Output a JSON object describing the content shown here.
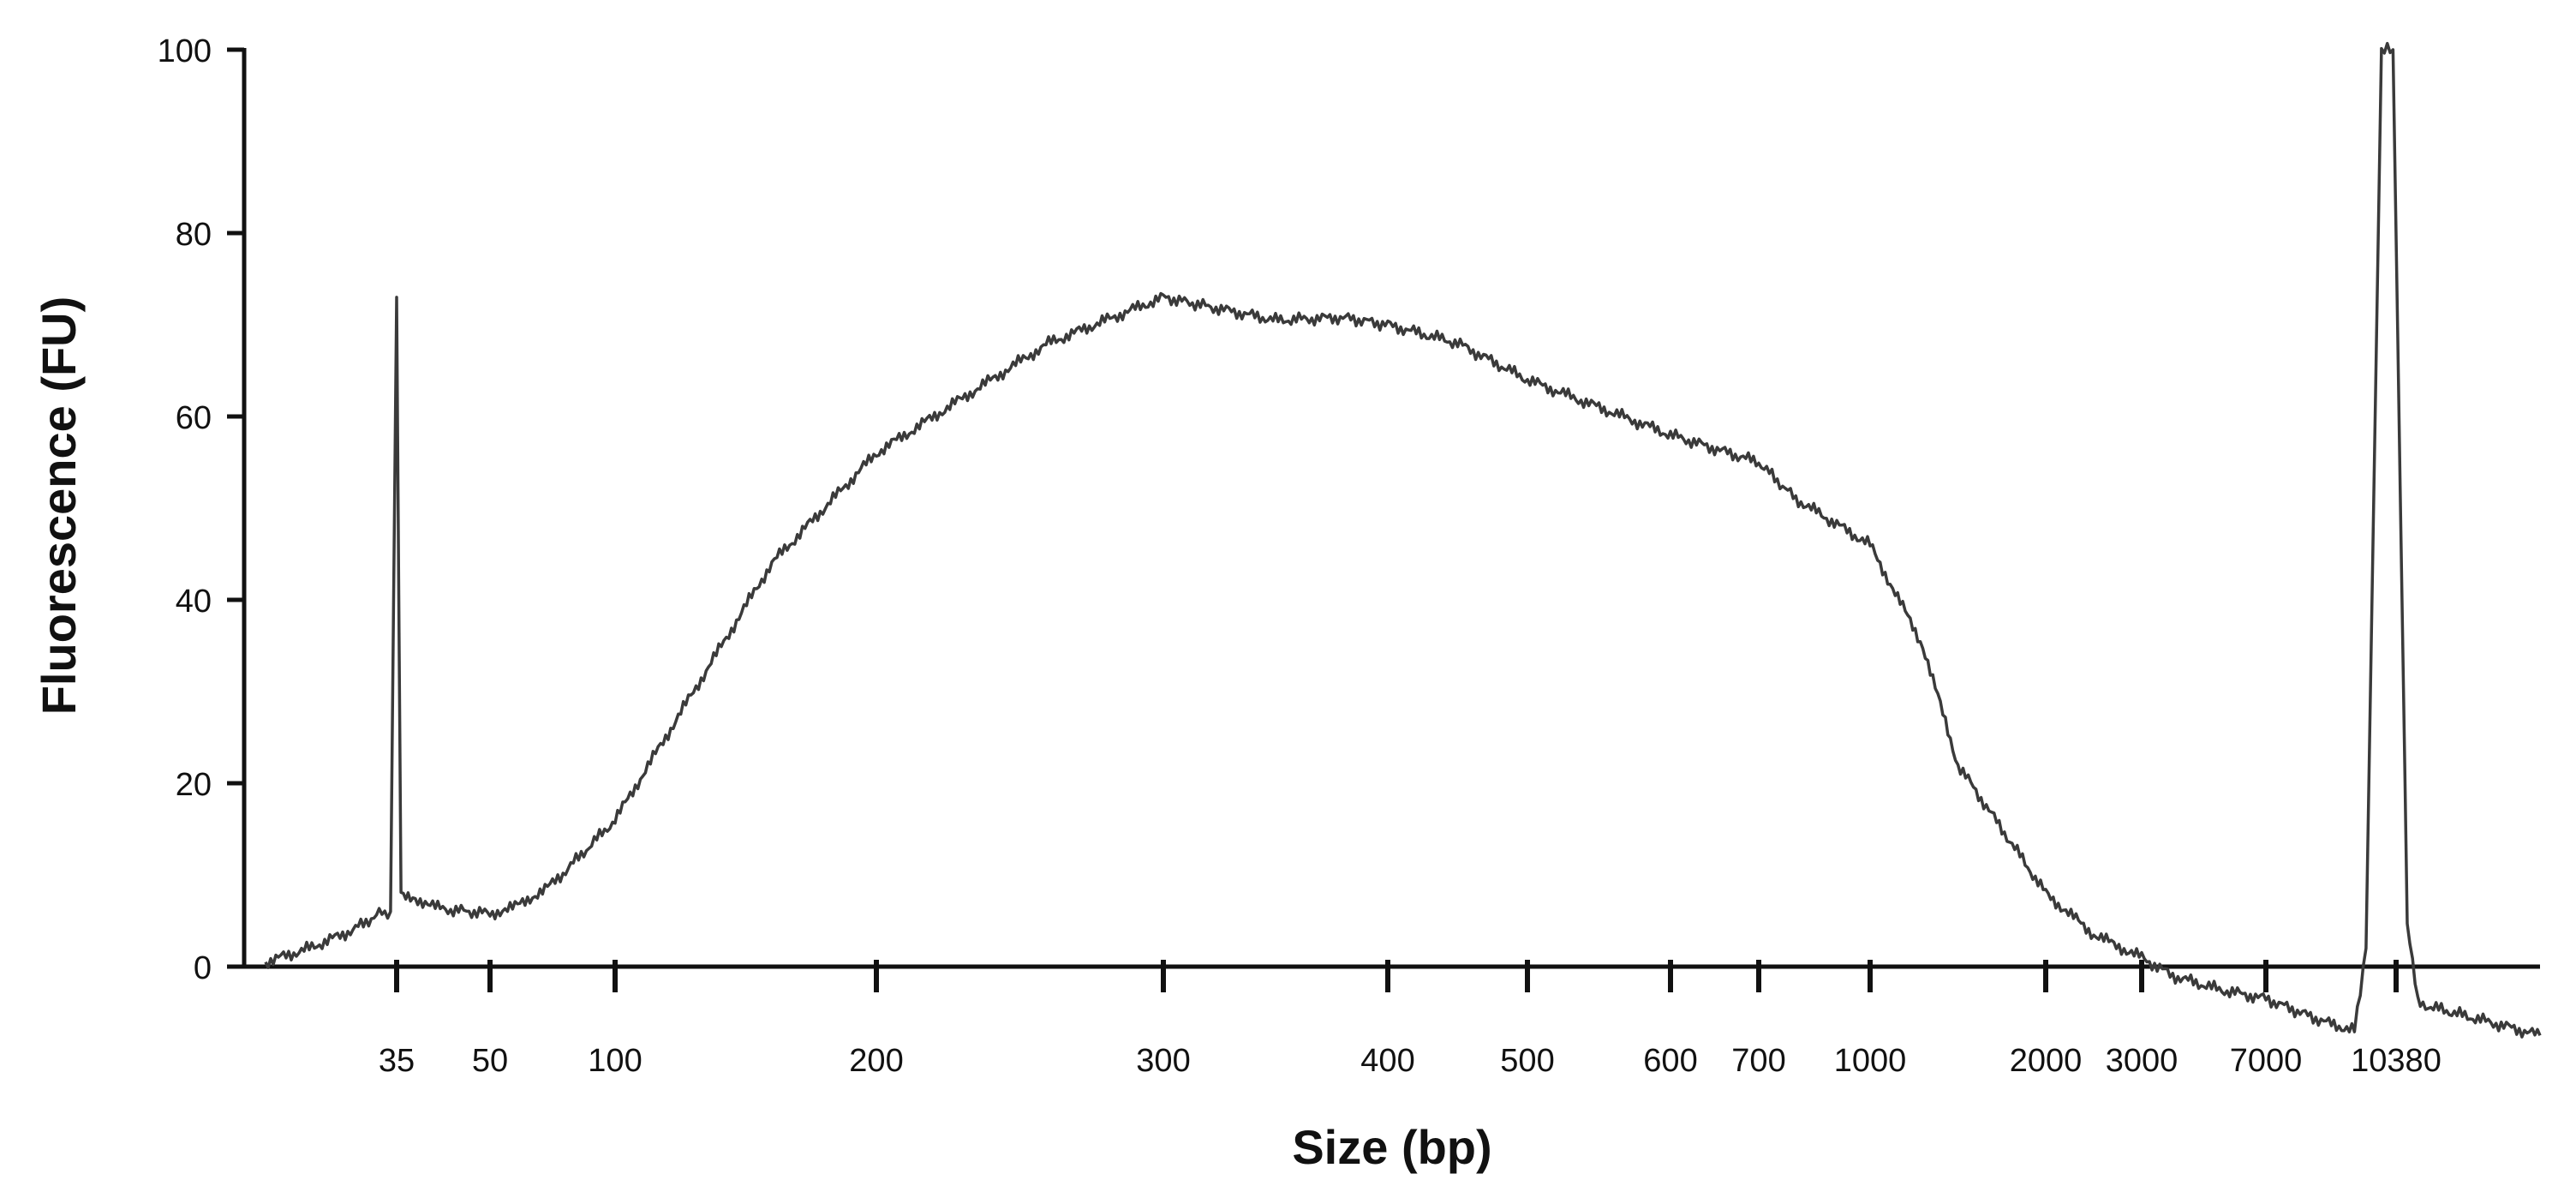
{
  "chart_data": {
    "type": "line",
    "title": "",
    "xlabel": "Size (bp)",
    "ylabel": "Fluorescence (FU)",
    "x_scale": "categorical-ladder (non-linear)",
    "x_ticks": [
      "35",
      "50",
      "100",
      "200",
      "300",
      "400",
      "500",
      "600",
      "700",
      "1000",
      "2000",
      "3000",
      "7000",
      "10380"
    ],
    "ylim": [
      0,
      100
    ],
    "y_ticks": [
      0,
      20,
      40,
      60,
      80,
      100
    ],
    "grid": false,
    "legend": "none",
    "line_color": "#3a3a3a",
    "series": [
      {
        "values_note": "Fluorescence trace vs. size (bp), sampled along the electropherogram",
        "points": [
          {
            "x": 20,
            "y": 0.5
          },
          {
            "x": 25,
            "y": 2
          },
          {
            "x": 30,
            "y": 4
          },
          {
            "x": 33,
            "y": 5.8
          },
          {
            "x": 34.3,
            "y": 6
          },
          {
            "x": 35,
            "y": 73
          },
          {
            "x": 35.7,
            "y": 8
          },
          {
            "x": 38,
            "y": 7.5
          },
          {
            "x": 42,
            "y": 6.3
          },
          {
            "x": 50,
            "y": 5.8
          },
          {
            "x": 60,
            "y": 6.5
          },
          {
            "x": 75,
            "y": 9
          },
          {
            "x": 100,
            "y": 16
          },
          {
            "x": 130,
            "y": 30
          },
          {
            "x": 160,
            "y": 44
          },
          {
            "x": 200,
            "y": 56
          },
          {
            "x": 230,
            "y": 62
          },
          {
            "x": 260,
            "y": 68
          },
          {
            "x": 300,
            "y": 73
          },
          {
            "x": 320,
            "y": 72
          },
          {
            "x": 350,
            "y": 70.5
          },
          {
            "x": 380,
            "y": 70.8
          },
          {
            "x": 400,
            "y": 70
          },
          {
            "x": 450,
            "y": 68
          },
          {
            "x": 500,
            "y": 64
          },
          {
            "x": 600,
            "y": 58
          },
          {
            "x": 700,
            "y": 55
          },
          {
            "x": 800,
            "y": 51
          },
          {
            "x": 1000,
            "y": 46
          },
          {
            "x": 1300,
            "y": 35
          },
          {
            "x": 1500,
            "y": 22
          },
          {
            "x": 2000,
            "y": 8
          },
          {
            "x": 2500,
            "y": 3.5
          },
          {
            "x": 3000,
            "y": 1
          },
          {
            "x": 4000,
            "y": -1
          },
          {
            "x": 5500,
            "y": -2.5
          },
          {
            "x": 7000,
            "y": -3.5
          },
          {
            "x": 8500,
            "y": -6
          },
          {
            "x": 9300,
            "y": -7
          },
          {
            "x": 9600,
            "y": 2
          },
          {
            "x": 10000,
            "y": 100
          },
          {
            "x": 10300,
            "y": 100
          },
          {
            "x": 10700,
            "y": 5
          },
          {
            "x": 11000,
            "y": -4
          },
          {
            "x": 12500,
            "y": -5.5
          },
          {
            "x": 14500,
            "y": -7.5
          }
        ]
      }
    ]
  }
}
